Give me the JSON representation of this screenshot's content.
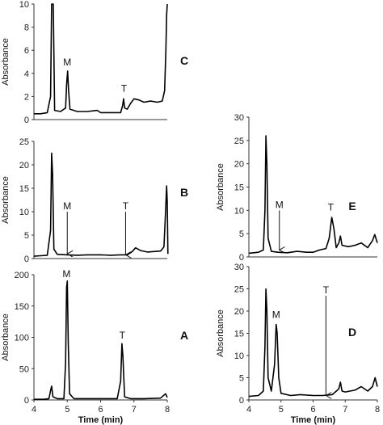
{
  "chart_data": [
    {
      "panel": "C",
      "type": "line",
      "ylabel": "Absorbance",
      "xlabel": "",
      "xlim": [
        4,
        8
      ],
      "ylim": [
        0,
        10
      ],
      "yticks": [
        0,
        2,
        4,
        6,
        8,
        10
      ],
      "xticks": [],
      "annotations": [
        {
          "text": "M",
          "x": 5.0,
          "y": 4.7,
          "arrow": false
        },
        {
          "text": "T",
          "x": 6.7,
          "y": 2.4,
          "arrow": false
        }
      ],
      "points": [
        [
          4.0,
          0.5
        ],
        [
          4.2,
          0.5
        ],
        [
          4.4,
          0.6
        ],
        [
          4.5,
          2.0
        ],
        [
          4.53,
          10.0
        ],
        [
          4.58,
          10.0
        ],
        [
          4.62,
          0.8
        ],
        [
          4.8,
          0.7
        ],
        [
          4.95,
          1.0
        ],
        [
          4.98,
          3.0
        ],
        [
          5.01,
          4.2
        ],
        [
          5.04,
          2.5
        ],
        [
          5.08,
          0.9
        ],
        [
          5.3,
          0.7
        ],
        [
          5.6,
          0.7
        ],
        [
          5.9,
          0.8
        ],
        [
          6.0,
          0.6
        ],
        [
          6.4,
          0.6
        ],
        [
          6.6,
          0.6
        ],
        [
          6.66,
          1.2
        ],
        [
          6.69,
          1.8
        ],
        [
          6.72,
          1.0
        ],
        [
          6.8,
          0.9
        ],
        [
          6.9,
          1.4
        ],
        [
          7.0,
          1.8
        ],
        [
          7.15,
          1.7
        ],
        [
          7.3,
          1.5
        ],
        [
          7.5,
          1.6
        ],
        [
          7.7,
          1.5
        ],
        [
          7.85,
          1.6
        ],
        [
          7.92,
          2.5
        ],
        [
          7.96,
          6.0
        ],
        [
          7.98,
          9.0
        ],
        [
          8.0,
          10.0
        ]
      ]
    },
    {
      "panel": "B",
      "type": "line",
      "ylabel": "Absorbance",
      "xlabel": "",
      "xlim": [
        4,
        8
      ],
      "ylim": [
        0,
        25
      ],
      "yticks": [
        0,
        5,
        10,
        15,
        20,
        25
      ],
      "xticks": [],
      "annotations": [
        {
          "text": "M",
          "x": 5.0,
          "y": 10.5,
          "arrow": true,
          "arrow_to": 1.0
        },
        {
          "text": "T",
          "x": 6.75,
          "y": 10.5,
          "arrow": true,
          "arrow_to": 0.8
        }
      ],
      "points": [
        [
          4.0,
          0.5
        ],
        [
          4.2,
          0.6
        ],
        [
          4.4,
          0.7
        ],
        [
          4.5,
          6.0
        ],
        [
          4.53,
          22.5
        ],
        [
          4.56,
          18.0
        ],
        [
          4.6,
          2.0
        ],
        [
          4.7,
          0.9
        ],
        [
          5.0,
          0.8
        ],
        [
          5.3,
          0.7
        ],
        [
          5.6,
          0.8
        ],
        [
          6.0,
          0.8
        ],
        [
          6.3,
          0.7
        ],
        [
          6.6,
          0.8
        ],
        [
          6.8,
          0.8
        ],
        [
          6.95,
          1.5
        ],
        [
          7.05,
          2.3
        ],
        [
          7.2,
          1.7
        ],
        [
          7.4,
          1.4
        ],
        [
          7.6,
          1.5
        ],
        [
          7.8,
          1.6
        ],
        [
          7.9,
          2.5
        ],
        [
          7.95,
          10.0
        ],
        [
          7.98,
          15.5
        ],
        [
          8.0,
          12.0
        ],
        [
          8.02,
          1.0
        ]
      ]
    },
    {
      "panel": "A",
      "type": "line",
      "ylabel": "Absorbance",
      "xlabel": "Time (min)",
      "xlim": [
        4,
        8
      ],
      "ylim": [
        0,
        200
      ],
      "yticks": [
        0,
        50,
        100,
        150,
        200
      ],
      "xticks": [
        4,
        5,
        6,
        7,
        8
      ],
      "annotations": [
        {
          "text": "M",
          "x": 4.98,
          "y": 196,
          "arrow": false
        },
        {
          "text": "T",
          "x": 6.65,
          "y": 98,
          "arrow": false
        }
      ],
      "points": [
        [
          4.0,
          1.0
        ],
        [
          4.3,
          1.0
        ],
        [
          4.45,
          2.0
        ],
        [
          4.5,
          15.0
        ],
        [
          4.53,
          22.0
        ],
        [
          4.57,
          5.0
        ],
        [
          4.7,
          2.0
        ],
        [
          4.9,
          2.0
        ],
        [
          4.95,
          60.0
        ],
        [
          4.98,
          180.0
        ],
        [
          5.0,
          190.0
        ],
        [
          5.03,
          90.0
        ],
        [
          5.07,
          10.0
        ],
        [
          5.2,
          2.0
        ],
        [
          5.6,
          2.0
        ],
        [
          6.0,
          2.0
        ],
        [
          6.5,
          2.0
        ],
        [
          6.6,
          30.0
        ],
        [
          6.64,
          90.0
        ],
        [
          6.67,
          70.0
        ],
        [
          6.72,
          5.0
        ],
        [
          6.9,
          2.0
        ],
        [
          7.3,
          2.0
        ],
        [
          7.8,
          3.0
        ],
        [
          7.95,
          10.0
        ],
        [
          8.0,
          4.0
        ]
      ]
    },
    {
      "panel": "E",
      "type": "line",
      "ylabel": "Absorbance",
      "xlabel": "",
      "xlim": [
        4,
        8
      ],
      "ylim": [
        0,
        30
      ],
      "yticks": [
        0,
        5,
        10,
        15,
        20,
        25,
        30
      ],
      "xticks": [],
      "annotations": [
        {
          "text": "M",
          "x": 4.95,
          "y": 10.5,
          "arrow": true,
          "arrow_to": 1.5
        },
        {
          "text": "T",
          "x": 6.55,
          "y": 10.0,
          "arrow": false
        }
      ],
      "points": [
        [
          4.0,
          0.8
        ],
        [
          4.3,
          1.0
        ],
        [
          4.45,
          1.5
        ],
        [
          4.5,
          10.0
        ],
        [
          4.53,
          26.0
        ],
        [
          4.56,
          20.0
        ],
        [
          4.6,
          4.0
        ],
        [
          4.7,
          1.2
        ],
        [
          4.9,
          1.0
        ],
        [
          5.2,
          0.9
        ],
        [
          5.5,
          1.2
        ],
        [
          5.8,
          1.0
        ],
        [
          6.0,
          1.0
        ],
        [
          6.2,
          1.5
        ],
        [
          6.4,
          1.8
        ],
        [
          6.5,
          4.0
        ],
        [
          6.58,
          8.5
        ],
        [
          6.65,
          6.0
        ],
        [
          6.72,
          2.0
        ],
        [
          6.8,
          3.0
        ],
        [
          6.85,
          4.5
        ],
        [
          6.9,
          2.5
        ],
        [
          7.1,
          2.2
        ],
        [
          7.3,
          2.5
        ],
        [
          7.5,
          3.0
        ],
        [
          7.7,
          2.0
        ],
        [
          7.85,
          3.5
        ],
        [
          7.92,
          4.8
        ],
        [
          8.0,
          3.0
        ]
      ]
    },
    {
      "panel": "D",
      "type": "line",
      "ylabel": "Absorbance",
      "xlabel": "Time (min)",
      "xlim": [
        4,
        8
      ],
      "ylim": [
        0,
        30
      ],
      "yticks": [
        0,
        5,
        10,
        15,
        20,
        25,
        30
      ],
      "xticks": [
        4,
        5,
        6,
        7,
        8
      ],
      "annotations": [
        {
          "text": "M",
          "x": 4.85,
          "y": 18.5,
          "arrow": false
        },
        {
          "text": "T",
          "x": 6.4,
          "y": 24.0,
          "arrow": true,
          "arrow_to": 1.0
        }
      ],
      "points": [
        [
          4.0,
          0.8
        ],
        [
          4.3,
          1.0
        ],
        [
          4.45,
          2.0
        ],
        [
          4.5,
          12.0
        ],
        [
          4.53,
          25.0
        ],
        [
          4.56,
          20.0
        ],
        [
          4.6,
          5.0
        ],
        [
          4.7,
          2.0
        ],
        [
          4.8,
          8.0
        ],
        [
          4.85,
          17.0
        ],
        [
          4.88,
          15.0
        ],
        [
          4.93,
          5.0
        ],
        [
          5.0,
          1.5
        ],
        [
          5.3,
          1.0
        ],
        [
          5.6,
          1.2
        ],
        [
          6.0,
          1.0
        ],
        [
          6.3,
          1.0
        ],
        [
          6.6,
          1.2
        ],
        [
          6.8,
          2.5
        ],
        [
          6.85,
          4.0
        ],
        [
          6.9,
          2.0
        ],
        [
          7.0,
          1.8
        ],
        [
          7.3,
          2.2
        ],
        [
          7.5,
          3.0
        ],
        [
          7.7,
          2.0
        ],
        [
          7.85,
          3.0
        ],
        [
          7.93,
          5.0
        ],
        [
          8.0,
          3.0
        ]
      ]
    }
  ]
}
